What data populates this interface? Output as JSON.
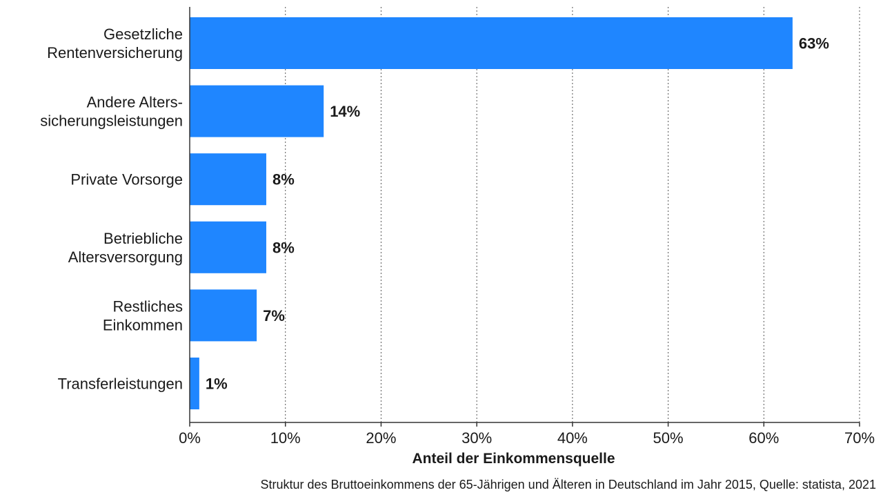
{
  "chart_data": {
    "type": "bar",
    "orientation": "horizontal",
    "categories": [
      [
        "Gesetzliche",
        "Rentenversicherung"
      ],
      [
        "Andere Alters-",
        "sicherungsleistungen"
      ],
      [
        "Private Vorsorge"
      ],
      [
        "Betriebliche",
        "Altersversorgung"
      ],
      [
        "Restliches",
        "Einkommen"
      ],
      [
        "Transferleistungen"
      ]
    ],
    "values": [
      63,
      14,
      8,
      8,
      7,
      1
    ],
    "value_labels": [
      "63%",
      "14%",
      "8%",
      "8%",
      "7%",
      "1%"
    ],
    "xlim": [
      0,
      70
    ],
    "xticks": [
      0,
      10,
      20,
      30,
      40,
      50,
      60,
      70
    ],
    "xtick_labels": [
      "0%",
      "10%",
      "20%",
      "30%",
      "40%",
      "50%",
      "60%",
      "70%"
    ],
    "xlabel": "Anteil der Einkommensquelle",
    "ylabel": "",
    "grid": "vertical-dotted",
    "bar_color": "#1f86ff"
  },
  "caption": "Struktur des Bruttoeinkommens der 65-Jährigen und Älteren in Deutschland im Jahr 2015, Quelle: statista, 2021"
}
